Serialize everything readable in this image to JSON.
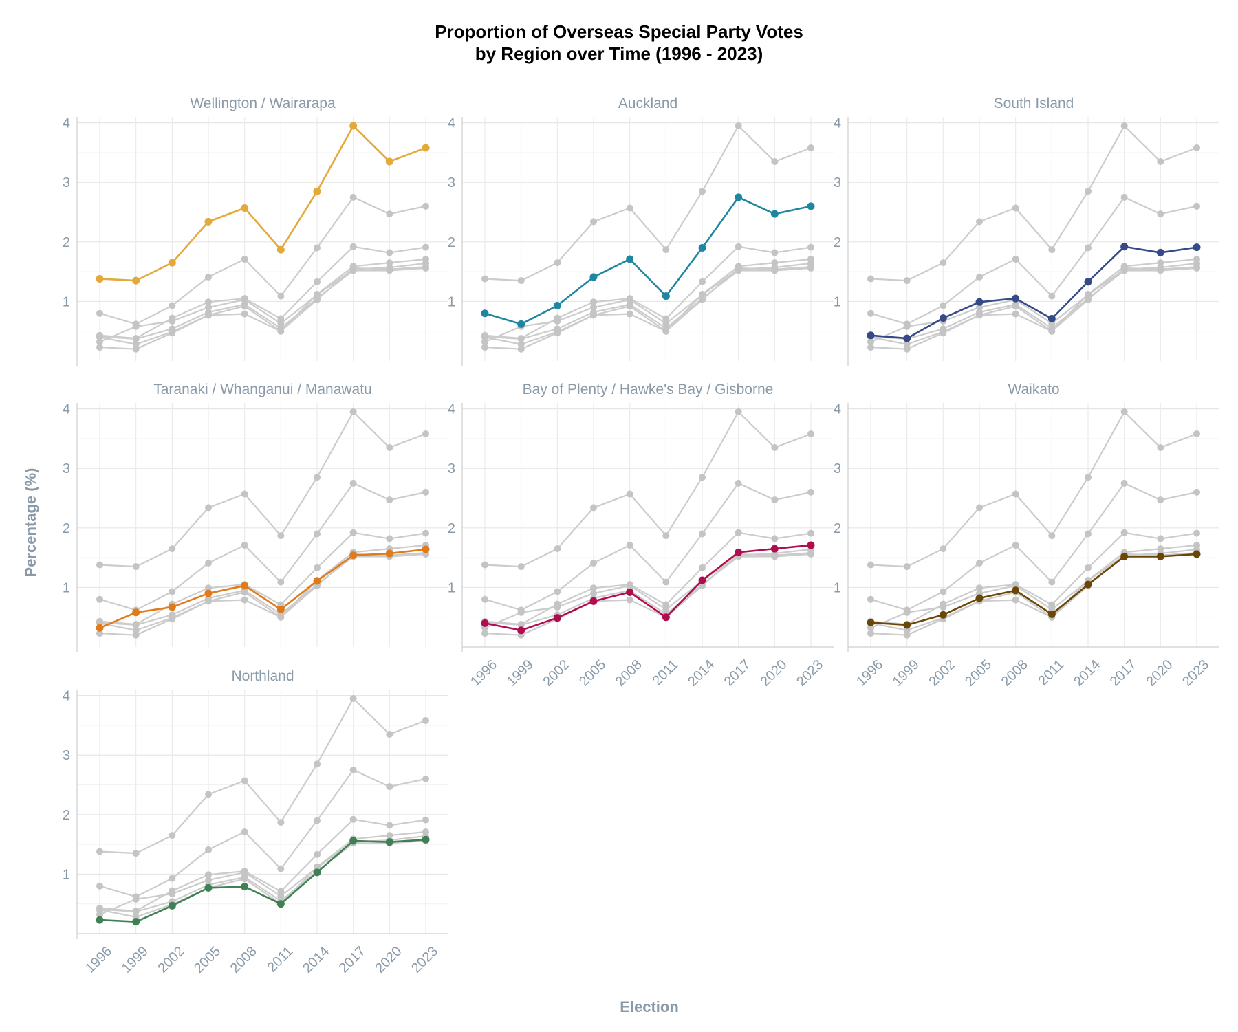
{
  "chart_data": {
    "type": "line",
    "title": "Proportion of Overseas Special Party Votes",
    "subtitle": "by Region over Time (1996 - 2023)",
    "xlabel": "Election",
    "ylabel": "Percentage (%)",
    "x": [
      "1996",
      "1999",
      "2002",
      "2005",
      "2008",
      "2011",
      "2014",
      "2017",
      "2020",
      "2023"
    ],
    "y_ticks": [
      "1",
      "2",
      "3",
      "4"
    ],
    "ylim": [
      0,
      4.1
    ],
    "grid": true,
    "background_series_color": "#cccccc",
    "series": [
      {
        "name": "Wellington / Wairarapa",
        "color": "#e3a93b",
        "values": [
          1.38,
          1.35,
          1.65,
          2.34,
          2.57,
          1.87,
          2.85,
          3.95,
          3.35,
          3.58
        ]
      },
      {
        "name": "Auckland",
        "color": "#1f86a0",
        "values": [
          0.8,
          0.62,
          0.93,
          1.41,
          1.71,
          1.09,
          1.9,
          2.75,
          2.47,
          2.6
        ]
      },
      {
        "name": "South Island",
        "color": "#354a86",
        "values": [
          0.43,
          0.38,
          0.72,
          0.99,
          1.05,
          0.71,
          1.33,
          1.92,
          1.82,
          1.91
        ]
      },
      {
        "name": "Taranaki / Whanganui / Manawatu",
        "color": "#e07b1c",
        "values": [
          0.32,
          0.58,
          0.67,
          0.9,
          1.03,
          0.63,
          1.11,
          1.54,
          1.57,
          1.64
        ]
      },
      {
        "name": "Bay of Plenty / Hawke's Bay / Gisborne",
        "color": "#b00c4f",
        "values": [
          0.4,
          0.28,
          0.49,
          0.77,
          0.92,
          0.5,
          1.12,
          1.59,
          1.65,
          1.71
        ]
      },
      {
        "name": "Waikato",
        "color": "#6b4606",
        "values": [
          0.41,
          0.37,
          0.54,
          0.82,
          0.95,
          0.55,
          1.05,
          1.52,
          1.52,
          1.56
        ]
      },
      {
        "name": "Northland",
        "color": "#3f8154",
        "values": [
          0.23,
          0.2,
          0.47,
          0.77,
          0.79,
          0.5,
          1.03,
          1.56,
          1.54,
          1.58
        ]
      }
    ]
  }
}
